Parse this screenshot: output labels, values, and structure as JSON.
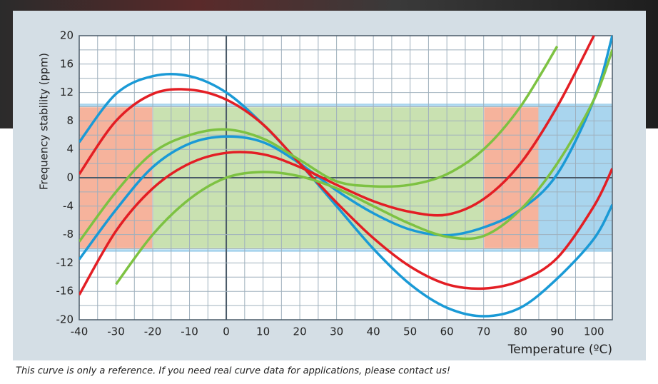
{
  "chart_data": {
    "type": "line",
    "y_label": "Frequency stability (ppm)",
    "x_label": "Temperature (ºC)",
    "note": "This curve is only a reference. If you need real curve data for applications, please contact us!",
    "x": [
      -40,
      -30,
      -20,
      -10,
      0,
      10,
      20,
      30,
      40,
      50,
      60,
      70,
      80,
      90,
      100,
      105
    ],
    "series": [
      {
        "color": "#1a9ad6",
        "values": [
          5,
          11.8,
          14.3,
          14.3,
          12,
          7.5,
          2,
          -4,
          -10,
          -15,
          -18.3,
          -19.5,
          -18.3,
          -14.2,
          -8.6,
          -3.8
        ]
      },
      {
        "color": "#1a9ad6",
        "values": [
          -11.5,
          -4.5,
          1.5,
          4.8,
          5.8,
          5,
          2,
          -1.8,
          -5,
          -7.3,
          -8.1,
          -7,
          -4.5,
          0.5,
          11,
          20
        ]
      },
      {
        "color": "#e31e24",
        "values": [
          0.5,
          8,
          11.8,
          12.4,
          11,
          7.5,
          2,
          -3.5,
          -8.5,
          -12.5,
          -15,
          -15.6,
          -14.5,
          -11.3,
          -4,
          1.3
        ]
      },
      {
        "color": "#e31e24",
        "values": [
          -16.5,
          -7.5,
          -1.5,
          2,
          3.5,
          3.3,
          1.5,
          -1,
          -3.3,
          -4.8,
          -5.2,
          -3,
          2,
          10,
          20,
          null
        ]
      },
      {
        "color": "#7dc242",
        "values": [
          -9,
          -2,
          3.5,
          6,
          6.8,
          5.5,
          2.5,
          -0.5,
          -1.2,
          -1,
          0.5,
          4,
          10,
          18.5,
          null,
          null
        ]
      },
      {
        "color": "#7dc242",
        "values": [
          null,
          -15,
          -8,
          -3,
          0,
          0.8,
          0.2,
          -1.5,
          -4,
          -6.5,
          -8.3,
          -8.2,
          -4.5,
          2,
          11,
          18
        ]
      }
    ],
    "bands": [
      {
        "x": [
          -40,
          105
        ],
        "y": [
          -10.5,
          10.5
        ],
        "color": "#a9d5ee"
      },
      {
        "x": [
          -40,
          85
        ],
        "y": [
          -10,
          10
        ],
        "color": "#f6b39c"
      },
      {
        "x": [
          -20,
          70
        ],
        "y": [
          -10,
          10
        ],
        "color": "#c9e1b1"
      }
    ],
    "xlim": [
      -40,
      105
    ],
    "ylim": [
      -20,
      20
    ],
    "xticks": [
      -40,
      -30,
      -20,
      -10,
      0,
      10,
      20,
      30,
      40,
      50,
      60,
      70,
      80,
      90,
      100
    ],
    "yticks": [
      -20,
      -16,
      -12,
      -8,
      -4,
      0,
      4,
      8,
      12,
      16,
      20
    ],
    "grid": true
  }
}
